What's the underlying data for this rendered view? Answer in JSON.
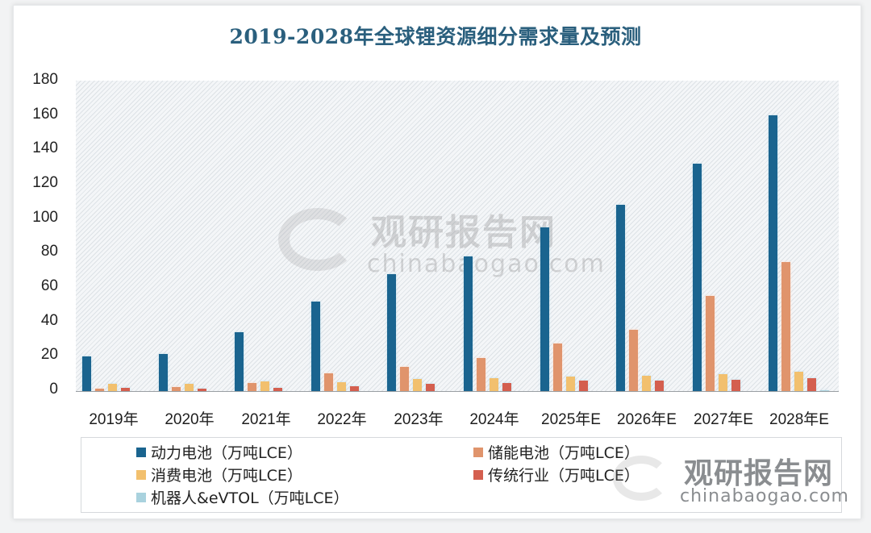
{
  "chart_data": {
    "type": "bar",
    "title": "2019-2028年全球锂资源细分需求量及预测",
    "xlabel": "",
    "ylabel": "",
    "ylim": [
      0,
      180
    ],
    "yticks": [
      0,
      20,
      40,
      60,
      80,
      100,
      120,
      140,
      160,
      180
    ],
    "grid": false,
    "legend_position": "bottom",
    "categories": [
      "2019年",
      "2020年",
      "2021年",
      "2022年",
      "2023年",
      "2024年",
      "2025年E",
      "2026年E",
      "2027年E",
      "2028年E"
    ],
    "series": [
      {
        "name": "动力电池（万吨LCE）",
        "color": "#1a648f",
        "values": [
          20,
          21.5,
          34,
          52,
          68,
          78,
          95,
          108,
          132,
          160
        ]
      },
      {
        "name": "储能电池（万吨LCE）",
        "color": "#e0946c",
        "values": [
          1.5,
          2.5,
          4.5,
          10.5,
          14,
          19,
          27.5,
          35.5,
          55,
          75
        ]
      },
      {
        "name": "消费电池（万吨LCE）",
        "color": "#f2c06e",
        "values": [
          4,
          4,
          5.5,
          5,
          7,
          7.5,
          8.5,
          9,
          10,
          11
        ]
      },
      {
        "name": "传统行业（万吨LCE）",
        "color": "#d45f4f",
        "values": [
          2,
          1.5,
          1.7,
          2.7,
          4,
          4.7,
          6,
          6,
          6.5,
          7.5
        ]
      },
      {
        "name": "机器人&eVTOL（万吨LCE）",
        "color": "#a9d2de",
        "values": [
          0,
          0,
          0,
          0,
          0,
          0,
          0,
          0,
          0,
          0.3
        ]
      }
    ]
  },
  "header": {
    "title": "2019-2028年全球锂资源细分需求量及预测"
  },
  "axis": {
    "y": [
      "180",
      "160",
      "140",
      "120",
      "100",
      "80",
      "60",
      "40",
      "20",
      "0"
    ],
    "x": [
      "2019年",
      "2020年",
      "2021年",
      "2022年",
      "2023年",
      "2024年",
      "2025年E",
      "2026年E",
      "2027年E",
      "2028年E"
    ]
  },
  "legend": {
    "items": [
      {
        "label": "动力电池（万吨LCE）",
        "color": "#1a648f"
      },
      {
        "label": "储能电池（万吨LCE）",
        "color": "#e0946c"
      },
      {
        "label": "消费电池（万吨LCE）",
        "color": "#f2c06e"
      },
      {
        "label": "传统行业（万吨LCE）",
        "color": "#d45f4f"
      },
      {
        "label": "机器人&eVTOL（万吨LCE）",
        "color": "#a9d2de"
      }
    ]
  },
  "watermark": {
    "brand": "观研报告网",
    "url": "chinabaogao.com"
  }
}
